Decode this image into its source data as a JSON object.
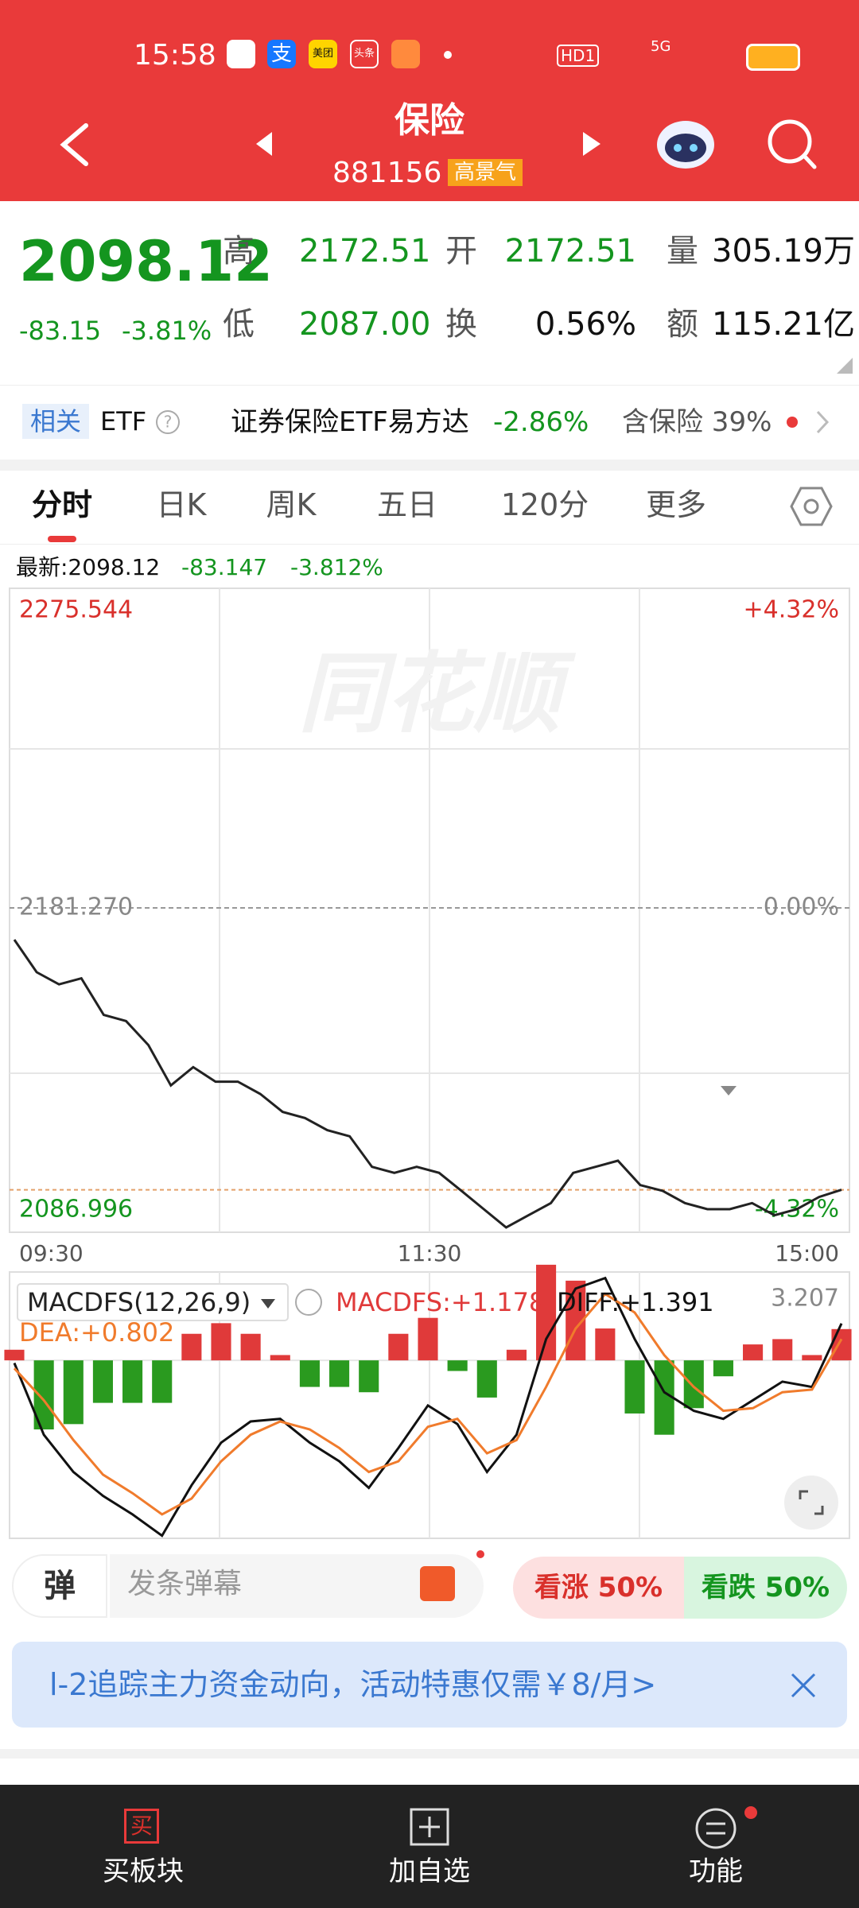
{
  "status": {
    "time": "15:58",
    "icons": [
      "支",
      "美团",
      "头条"
    ],
    "hd": "HD1",
    "net": "5G"
  },
  "header": {
    "title": "保险",
    "code": "881156",
    "tag": "高景气"
  },
  "quote": {
    "price": "2098.12",
    "change": "-83.15",
    "change_pct": "-3.81%",
    "fields": [
      [
        "高",
        "2172.51"
      ],
      [
        "开",
        "2172.51"
      ],
      [
        "量",
        "305.19万"
      ],
      [
        "低",
        "2087.00"
      ],
      [
        "换",
        "0.56%"
      ],
      [
        "额",
        "115.21亿"
      ]
    ]
  },
  "etf": {
    "tag": "相关",
    "label": "ETF",
    "name": "证券保险ETF易方达",
    "change": "-2.86%",
    "holding": "含保险 39%"
  },
  "tabs": [
    "分时",
    "日K",
    "周K",
    "五日",
    "120分",
    "更多"
  ],
  "info": {
    "latest": "最新:2098.12",
    "change": "-83.147",
    "change_pct": "-3.812%"
  },
  "watermark": "同花顺",
  "chart_data": [
    {
      "type": "line",
      "color": "#222222",
      "values": [
        2171.9,
        2162.3,
        2158.7,
        2160.5,
        2149.7,
        2147.9,
        2140.8,
        2128.9,
        2134.3,
        2130,
        2130,
        2126.4,
        2121.1,
        2119.3,
        2115.7,
        2113.9,
        2104.9,
        2103.1,
        2104.9,
        2103.1,
        2097.8,
        2092.4,
        2087,
        2090.6,
        2094.2,
        2103.1,
        2104.9,
        2106.7,
        2099.5,
        2097.8,
        2094.2,
        2092.4,
        2092.4,
        2094.2,
        2090.6,
        2092.4,
        2096,
        2098.12
      ],
      "ylim": [
        2086.996,
        2275.544
      ],
      "yticks": [
        2275.544,
        {
          "value": 2181.27,
          "label": "2181.270"
        },
        2086.996
      ],
      "y2lim": [
        -4.32,
        4.32
      ],
      "y2ticks": [
        {
          "value": 4.32,
          "label": "+4.32%"
        },
        {
          "value": 0,
          "label": "0.00%"
        },
        {
          "value": -4.32,
          "label": "-4.32%"
        }
      ],
      "time_labels": [
        "09:30",
        "11:30",
        "15:00"
      ],
      "grid": true
    },
    {
      "type": "macd",
      "title": "MACDFS(12,26,9)",
      "ylim": [
        -6.7,
        3.207
      ],
      "yticks": [
        3.207
      ],
      "series": [
        {
          "name": "MACDFS:+1.178",
          "color": "#e03a3a",
          "down_color": "#2a9a1f",
          "kind": "bar",
          "values": [
            0.4,
            -2.6,
            -2.4,
            -1.6,
            -1.6,
            -1.6,
            1.0,
            1.4,
            1.0,
            0.2,
            -1.0,
            -1.0,
            -1.2,
            1.0,
            1.6,
            -0.4,
            -1.4,
            0.4,
            3.6,
            3.0,
            1.2,
            -2.0,
            -2.8,
            -1.8,
            -0.6,
            0.6,
            0.8,
            0.2,
            1.178
          ]
        },
        {
          "name": "DIFF:+1.391",
          "color": "#111111",
          "kind": "line",
          "values": [
            -0.1,
            -2.8,
            -4.2,
            -5.1,
            -5.8,
            -6.6,
            -4.7,
            -3.1,
            -2.3,
            -2.2,
            -3.1,
            -3.8,
            -4.8,
            -3.3,
            -1.7,
            -2.4,
            -4.2,
            -2.8,
            0.8,
            2.7,
            3.1,
            0.8,
            -1.2,
            -1.9,
            -2.2,
            -1.5,
            -0.8,
            -1.0,
            1.391
          ]
        },
        {
          "name": "DEA:+0.802",
          "color": "#f07b2c",
          "kind": "line",
          "values": [
            -0.3,
            -1.5,
            -3.0,
            -4.3,
            -5.0,
            -5.8,
            -5.2,
            -3.8,
            -2.8,
            -2.3,
            -2.6,
            -3.3,
            -4.2,
            -3.8,
            -2.5,
            -2.2,
            -3.5,
            -3.0,
            -1.0,
            1.2,
            2.5,
            1.8,
            0.2,
            -1.0,
            -1.9,
            -1.8,
            -1.2,
            -1.1,
            0.802
          ]
        }
      ]
    }
  ],
  "danmu": {
    "icon": "弹",
    "placeholder": "发条弹幕"
  },
  "vote": {
    "up": "看涨 50%",
    "down": "看跌 50%"
  },
  "banner": "l-2追踪主力资金动向，活动特惠仅需￥8/月>",
  "nav": [
    {
      "icon": "买",
      "label": "买板块"
    },
    {
      "label": "加自选"
    },
    {
      "label": "功能"
    }
  ]
}
